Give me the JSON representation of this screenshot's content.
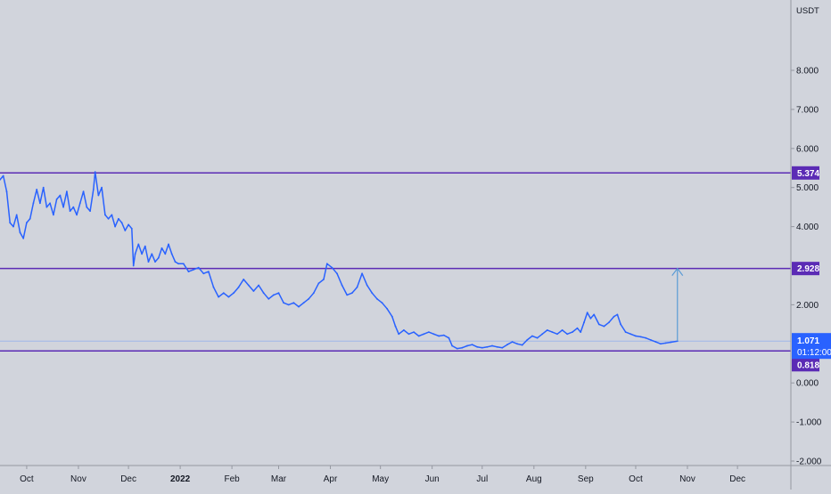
{
  "chart_data": {
    "type": "line",
    "unit_label": "USDT",
    "colors": {
      "background": "#d1d4dc",
      "price_line": "#2962ff",
      "level_line": "#5b2bb5",
      "badge": "#5b2bb5",
      "current_badge": "#2962ff",
      "projection_arrow": "#5b9bd5",
      "axis_text": "#131722"
    },
    "ylim": [
      -2.0,
      9.8
    ],
    "y_ticks": [
      {
        "value": 8.0,
        "label": "8.000"
      },
      {
        "value": 7.0,
        "label": "7.000"
      },
      {
        "value": 6.0,
        "label": "6.000"
      },
      {
        "value": 5.0,
        "label": "5.000"
      },
      {
        "value": 4.0,
        "label": "4.000"
      },
      {
        "value": 2.0,
        "label": "2.000"
      },
      {
        "value": 0.0,
        "label": "0.000"
      },
      {
        "value": -1.0,
        "label": "-1.000"
      },
      {
        "value": -2.0,
        "label": "-2.000"
      }
    ],
    "xlim": [
      "2021-09-15",
      "2023-01-02"
    ],
    "x_ticks": [
      {
        "date": "2021-10-01",
        "label": "Oct",
        "bold": false
      },
      {
        "date": "2021-11-01",
        "label": "Nov",
        "bold": false
      },
      {
        "date": "2021-12-01",
        "label": "Dec",
        "bold": false
      },
      {
        "date": "2022-01-01",
        "label": "2022",
        "bold": true
      },
      {
        "date": "2022-02-01",
        "label": "Feb",
        "bold": false
      },
      {
        "date": "2022-03-01",
        "label": "Mar",
        "bold": false
      },
      {
        "date": "2022-04-01",
        "label": "Apr",
        "bold": false
      },
      {
        "date": "2022-05-01",
        "label": "May",
        "bold": false
      },
      {
        "date": "2022-06-01",
        "label": "Jun",
        "bold": false
      },
      {
        "date": "2022-07-01",
        "label": "Jul",
        "bold": false
      },
      {
        "date": "2022-08-01",
        "label": "Aug",
        "bold": false
      },
      {
        "date": "2022-09-01",
        "label": "Sep",
        "bold": false
      },
      {
        "date": "2022-10-01",
        "label": "Oct",
        "bold": false
      },
      {
        "date": "2022-11-01",
        "label": "Nov",
        "bold": false
      },
      {
        "date": "2022-12-01",
        "label": "Dec",
        "bold": false
      }
    ],
    "levels": [
      {
        "value": 5.374,
        "label": "5.374"
      },
      {
        "value": 2.928,
        "label": "2.928"
      },
      {
        "value": 0.818,
        "label": "0.818"
      }
    ],
    "current_price": {
      "value": 1.071,
      "label": "1.071",
      "countdown": "01:12:00"
    },
    "projection": {
      "date": "2022-10-26",
      "from": 1.07,
      "to": 2.93
    },
    "series": [
      {
        "points": [
          [
            "2021-09-15",
            5.2
          ],
          [
            "2021-09-17",
            5.3
          ],
          [
            "2021-09-19",
            4.9
          ],
          [
            "2021-09-21",
            4.1
          ],
          [
            "2021-09-23",
            4.0
          ],
          [
            "2021-09-25",
            4.3
          ],
          [
            "2021-09-27",
            3.85
          ],
          [
            "2021-09-29",
            3.7
          ],
          [
            "2021-10-01",
            4.1
          ],
          [
            "2021-10-03",
            4.2
          ],
          [
            "2021-10-05",
            4.6
          ],
          [
            "2021-10-07",
            4.95
          ],
          [
            "2021-10-09",
            4.6
          ],
          [
            "2021-10-11",
            5.0
          ],
          [
            "2021-10-13",
            4.5
          ],
          [
            "2021-10-15",
            4.6
          ],
          [
            "2021-10-17",
            4.3
          ],
          [
            "2021-10-19",
            4.7
          ],
          [
            "2021-10-21",
            4.8
          ],
          [
            "2021-10-23",
            4.5
          ],
          [
            "2021-10-25",
            4.9
          ],
          [
            "2021-10-27",
            4.4
          ],
          [
            "2021-10-29",
            4.5
          ],
          [
            "2021-10-31",
            4.3
          ],
          [
            "2021-11-02",
            4.6
          ],
          [
            "2021-11-04",
            4.9
          ],
          [
            "2021-11-06",
            4.5
          ],
          [
            "2021-11-08",
            4.4
          ],
          [
            "2021-11-10",
            4.95
          ],
          [
            "2021-11-11",
            5.4
          ],
          [
            "2021-11-13",
            4.8
          ],
          [
            "2021-11-15",
            5.0
          ],
          [
            "2021-11-17",
            4.3
          ],
          [
            "2021-11-19",
            4.2
          ],
          [
            "2021-11-21",
            4.3
          ],
          [
            "2021-11-23",
            4.0
          ],
          [
            "2021-11-25",
            4.2
          ],
          [
            "2021-11-27",
            4.1
          ],
          [
            "2021-11-29",
            3.9
          ],
          [
            "2021-12-01",
            4.05
          ],
          [
            "2021-12-03",
            3.95
          ],
          [
            "2021-12-04",
            3.0
          ],
          [
            "2021-12-05",
            3.3
          ],
          [
            "2021-12-07",
            3.55
          ],
          [
            "2021-12-09",
            3.3
          ],
          [
            "2021-12-11",
            3.5
          ],
          [
            "2021-12-13",
            3.1
          ],
          [
            "2021-12-15",
            3.3
          ],
          [
            "2021-12-17",
            3.1
          ],
          [
            "2021-12-19",
            3.2
          ],
          [
            "2021-12-21",
            3.45
          ],
          [
            "2021-12-23",
            3.3
          ],
          [
            "2021-12-25",
            3.55
          ],
          [
            "2021-12-27",
            3.3
          ],
          [
            "2021-12-29",
            3.1
          ],
          [
            "2021-12-31",
            3.05
          ],
          [
            "2022-01-03",
            3.05
          ],
          [
            "2022-01-06",
            2.85
          ],
          [
            "2022-01-09",
            2.9
          ],
          [
            "2022-01-12",
            2.95
          ],
          [
            "2022-01-15",
            2.8
          ],
          [
            "2022-01-18",
            2.85
          ],
          [
            "2022-01-21",
            2.45
          ],
          [
            "2022-01-24",
            2.2
          ],
          [
            "2022-01-27",
            2.3
          ],
          [
            "2022-01-30",
            2.2
          ],
          [
            "2022-02-02",
            2.3
          ],
          [
            "2022-02-05",
            2.45
          ],
          [
            "2022-02-08",
            2.65
          ],
          [
            "2022-02-11",
            2.5
          ],
          [
            "2022-02-14",
            2.35
          ],
          [
            "2022-02-17",
            2.5
          ],
          [
            "2022-02-20",
            2.3
          ],
          [
            "2022-02-23",
            2.15
          ],
          [
            "2022-02-26",
            2.25
          ],
          [
            "2022-03-01",
            2.3
          ],
          [
            "2022-03-04",
            2.05
          ],
          [
            "2022-03-07",
            2.0
          ],
          [
            "2022-03-10",
            2.05
          ],
          [
            "2022-03-13",
            1.95
          ],
          [
            "2022-03-16",
            2.05
          ],
          [
            "2022-03-19",
            2.15
          ],
          [
            "2022-03-22",
            2.3
          ],
          [
            "2022-03-25",
            2.55
          ],
          [
            "2022-03-28",
            2.65
          ],
          [
            "2022-03-30",
            3.05
          ],
          [
            "2022-04-02",
            2.95
          ],
          [
            "2022-04-05",
            2.8
          ],
          [
            "2022-04-08",
            2.5
          ],
          [
            "2022-04-11",
            2.25
          ],
          [
            "2022-04-14",
            2.3
          ],
          [
            "2022-04-17",
            2.45
          ],
          [
            "2022-04-20",
            2.8
          ],
          [
            "2022-04-23",
            2.5
          ],
          [
            "2022-04-26",
            2.3
          ],
          [
            "2022-04-29",
            2.15
          ],
          [
            "2022-05-02",
            2.05
          ],
          [
            "2022-05-05",
            1.9
          ],
          [
            "2022-05-08",
            1.7
          ],
          [
            "2022-05-10",
            1.45
          ],
          [
            "2022-05-12",
            1.25
          ],
          [
            "2022-05-15",
            1.35
          ],
          [
            "2022-05-18",
            1.25
          ],
          [
            "2022-05-21",
            1.3
          ],
          [
            "2022-05-24",
            1.2
          ],
          [
            "2022-05-27",
            1.25
          ],
          [
            "2022-05-30",
            1.3
          ],
          [
            "2022-06-02",
            1.25
          ],
          [
            "2022-06-05",
            1.2
          ],
          [
            "2022-06-08",
            1.22
          ],
          [
            "2022-06-11",
            1.15
          ],
          [
            "2022-06-13",
            0.95
          ],
          [
            "2022-06-16",
            0.88
          ],
          [
            "2022-06-19",
            0.9
          ],
          [
            "2022-06-22",
            0.95
          ],
          [
            "2022-06-25",
            0.98
          ],
          [
            "2022-06-28",
            0.92
          ],
          [
            "2022-07-01",
            0.9
          ],
          [
            "2022-07-04",
            0.92
          ],
          [
            "2022-07-07",
            0.95
          ],
          [
            "2022-07-10",
            0.92
          ],
          [
            "2022-07-13",
            0.9
          ],
          [
            "2022-07-16",
            0.98
          ],
          [
            "2022-07-19",
            1.05
          ],
          [
            "2022-07-22",
            1.0
          ],
          [
            "2022-07-25",
            0.97
          ],
          [
            "2022-07-28",
            1.1
          ],
          [
            "2022-07-31",
            1.2
          ],
          [
            "2022-08-03",
            1.15
          ],
          [
            "2022-08-06",
            1.25
          ],
          [
            "2022-08-09",
            1.35
          ],
          [
            "2022-08-12",
            1.3
          ],
          [
            "2022-08-15",
            1.25
          ],
          [
            "2022-08-18",
            1.35
          ],
          [
            "2022-08-21",
            1.25
          ],
          [
            "2022-08-24",
            1.3
          ],
          [
            "2022-08-27",
            1.4
          ],
          [
            "2022-08-29",
            1.3
          ],
          [
            "2022-08-31",
            1.55
          ],
          [
            "2022-09-02",
            1.8
          ],
          [
            "2022-09-04",
            1.65
          ],
          [
            "2022-09-06",
            1.75
          ],
          [
            "2022-09-09",
            1.5
          ],
          [
            "2022-09-12",
            1.45
          ],
          [
            "2022-09-15",
            1.55
          ],
          [
            "2022-09-18",
            1.7
          ],
          [
            "2022-09-20",
            1.75
          ],
          [
            "2022-09-22",
            1.5
          ],
          [
            "2022-09-25",
            1.3
          ],
          [
            "2022-09-28",
            1.25
          ],
          [
            "2022-10-01",
            1.2
          ],
          [
            "2022-10-04",
            1.18
          ],
          [
            "2022-10-07",
            1.15
          ],
          [
            "2022-10-10",
            1.1
          ],
          [
            "2022-10-13",
            1.05
          ],
          [
            "2022-10-16",
            1.0
          ],
          [
            "2022-10-19",
            1.02
          ],
          [
            "2022-10-22",
            1.04
          ],
          [
            "2022-10-26",
            1.07
          ]
        ]
      }
    ]
  }
}
